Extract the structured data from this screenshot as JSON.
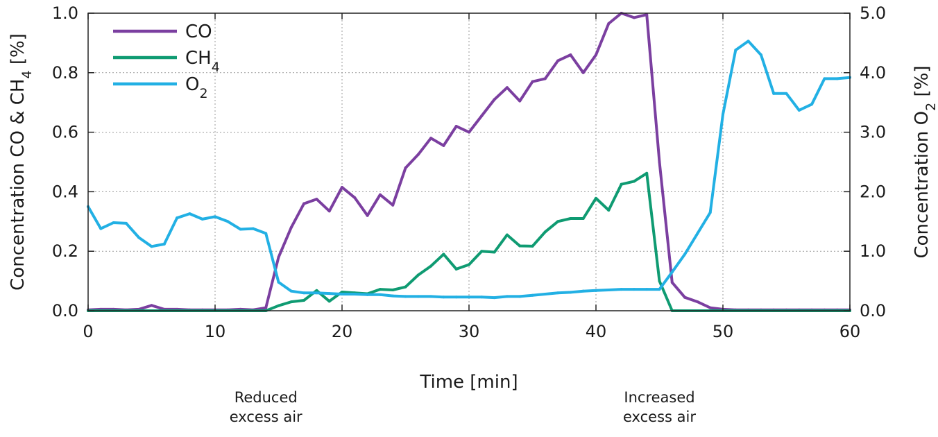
{
  "chart_data": {
    "type": "line",
    "title": "",
    "xlabel": "Time [min]",
    "ylabel_left": {
      "base": "Concentration CO & CH",
      "sub": "4",
      "tail": " [%]"
    },
    "ylabel_right": {
      "base": "Concentration O",
      "sub": "2",
      "tail": " [%]"
    },
    "xlim": [
      0,
      60
    ],
    "ylim_left": [
      0,
      1.0
    ],
    "ylim_right": [
      0,
      5.0
    ],
    "x_ticks": [
      0,
      10,
      20,
      30,
      40,
      50,
      60
    ],
    "x_tick_labels": [
      "0",
      "10",
      "20",
      "30",
      "40",
      "50",
      "60"
    ],
    "y_left_ticks": [
      0,
      0.2,
      0.4,
      0.6,
      0.8,
      1.0
    ],
    "y_left_tick_labels": [
      "0.0",
      "0.2",
      "0.4",
      "0.6",
      "0.8",
      "1.0"
    ],
    "y_right_ticks": [
      0,
      1,
      2,
      3,
      4,
      5
    ],
    "y_right_tick_labels": [
      "0.0",
      "1.0",
      "2.0",
      "3.0",
      "4.0",
      "5.0"
    ],
    "grid": true,
    "legend_position": "top-left",
    "series": [
      {
        "name": "CO",
        "sub": "",
        "color": "#7b3fa0",
        "axis": "left",
        "x": [
          0,
          1,
          2,
          3,
          4,
          5,
          6,
          7,
          8,
          9,
          10,
          11,
          12,
          13,
          14,
          15,
          16,
          17,
          18,
          19,
          20,
          21,
          22,
          23,
          24,
          25,
          26,
          27,
          28,
          29,
          30,
          31,
          32,
          33,
          34,
          35,
          36,
          37,
          38,
          39,
          40,
          41,
          42,
          43,
          44,
          45,
          46,
          47,
          48,
          49,
          50,
          51,
          52,
          53,
          54,
          55,
          56,
          57,
          58,
          59,
          60
        ],
        "values": [
          0.003,
          0.005,
          0.005,
          0.003,
          0.005,
          0.018,
          0.005,
          0.005,
          0.003,
          0.003,
          0.003,
          0.003,
          0.005,
          0.003,
          0.01,
          0.18,
          0.28,
          0.36,
          0.375,
          0.335,
          0.415,
          0.38,
          0.32,
          0.39,
          0.355,
          0.48,
          0.525,
          0.58,
          0.555,
          0.62,
          0.6,
          0.655,
          0.71,
          0.75,
          0.705,
          0.77,
          0.78,
          0.84,
          0.86,
          0.8,
          0.86,
          0.965,
          1.0,
          0.985,
          0.995,
          0.5,
          0.095,
          0.045,
          0.03,
          0.01,
          0.005,
          0.003,
          0.003,
          0.003,
          0.003,
          0.003,
          0.003,
          0.003,
          0.003,
          0.003,
          0.003
        ]
      },
      {
        "name": "CH",
        "sub": "4",
        "color": "#0f9b72",
        "axis": "left",
        "x": [
          0,
          1,
          2,
          3,
          4,
          5,
          6,
          7,
          8,
          9,
          10,
          11,
          12,
          13,
          14,
          15,
          16,
          17,
          18,
          19,
          20,
          21,
          22,
          23,
          24,
          25,
          26,
          27,
          28,
          29,
          30,
          31,
          32,
          33,
          34,
          35,
          36,
          37,
          38,
          39,
          40,
          41,
          42,
          43,
          44,
          45,
          46,
          47,
          48,
          49,
          50,
          51,
          52,
          53,
          54,
          55,
          56,
          57,
          58,
          59,
          60
        ],
        "values": [
          0.0,
          0.0,
          0.0,
          0.0,
          0.0,
          0.0,
          0.0,
          0.0,
          0.0,
          0.0,
          0.0,
          0.0,
          0.0,
          0.0,
          0.0,
          0.017,
          0.03,
          0.035,
          0.068,
          0.032,
          0.063,
          0.06,
          0.057,
          0.072,
          0.07,
          0.08,
          0.12,
          0.15,
          0.19,
          0.14,
          0.155,
          0.2,
          0.197,
          0.255,
          0.218,
          0.217,
          0.265,
          0.3,
          0.31,
          0.31,
          0.378,
          0.338,
          0.425,
          0.435,
          0.462,
          0.1,
          0.0,
          0.0,
          0.0,
          0.0,
          0.0,
          0.0,
          0.0,
          0.0,
          0.0,
          0.0,
          0.0,
          0.0,
          0.0,
          0.0,
          0.0
        ]
      },
      {
        "name": "O",
        "sub": "2",
        "color": "#22b0e4",
        "axis": "right",
        "x": [
          0,
          1,
          2,
          3,
          4,
          5,
          6,
          7,
          8,
          9,
          10,
          11,
          12,
          13,
          14,
          15,
          16,
          17,
          18,
          19,
          20,
          21,
          22,
          23,
          24,
          25,
          26,
          27,
          28,
          29,
          30,
          31,
          32,
          33,
          34,
          35,
          36,
          37,
          38,
          39,
          40,
          41,
          42,
          43,
          44,
          45,
          46,
          47,
          48,
          49,
          50,
          51,
          52,
          53,
          54,
          55,
          56,
          57,
          58,
          59,
          60
        ],
        "values": [
          1.75,
          1.38,
          1.48,
          1.47,
          1.23,
          1.08,
          1.12,
          1.56,
          1.63,
          1.54,
          1.58,
          1.5,
          1.37,
          1.38,
          1.3,
          0.48,
          0.33,
          0.3,
          0.3,
          0.29,
          0.28,
          0.28,
          0.27,
          0.27,
          0.25,
          0.24,
          0.24,
          0.24,
          0.23,
          0.23,
          0.23,
          0.23,
          0.22,
          0.24,
          0.24,
          0.26,
          0.28,
          0.3,
          0.31,
          0.33,
          0.34,
          0.35,
          0.36,
          0.36,
          0.36,
          0.36,
          0.65,
          0.95,
          1.3,
          1.65,
          3.3,
          4.38,
          4.53,
          4.3,
          3.65,
          3.65,
          3.37,
          3.47,
          3.9,
          3.9,
          3.92
        ]
      }
    ],
    "annotations": [
      {
        "x": 14,
        "lines": [
          "Reduced",
          "excess air"
        ]
      },
      {
        "x": 45,
        "lines": [
          "Increased",
          "excess air"
        ]
      }
    ]
  }
}
